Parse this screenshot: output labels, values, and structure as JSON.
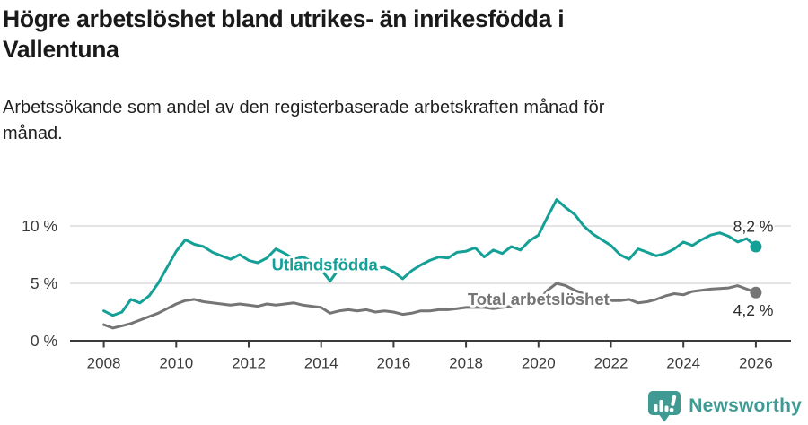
{
  "header": {
    "title": "Högre arbetslöshet bland utrikes- än inrikesfödda i Vallentuna",
    "title_lines": [
      "Högre arbetslöshet bland utrikes- än inrikesfödda i",
      "Vallentuna"
    ],
    "subtitle": "Arbetssökande som andel av den registerbaserade arbetskraften månad för månad.",
    "subtitle_lines": [
      "Arbetssökande som andel av den registerbaserade arbetskraften månad för",
      "månad."
    ]
  },
  "chart_data": {
    "type": "line",
    "title": "Högre arbetslöshet bland utrikes- än inrikesfödda i Vallentuna",
    "subtitle": "Arbetssökande som andel av den registerbaserade arbetskraften månad för månad.",
    "unit": "%",
    "grid": true,
    "x_start": 2008,
    "x_step": 0.25,
    "xlim": [
      2007.1,
      2027.0
    ],
    "ylim": [
      0,
      13.7
    ],
    "x_ticks": [
      2008,
      2010,
      2012,
      2014,
      2016,
      2018,
      2020,
      2022,
      2024,
      2026
    ],
    "y_ticks": [
      {
        "value": 0,
        "label": "0 %"
      },
      {
        "value": 5,
        "label": "5 %"
      },
      {
        "value": 10,
        "label": "10 %"
      }
    ],
    "series": [
      {
        "name": "Utlandsfödda",
        "color": "#14a096",
        "end_label": "8,2 %",
        "end_value": 8.2,
        "label_pos": {
          "x": 2014.1,
          "y": 6.6
        },
        "values": [
          2.6,
          2.2,
          2.5,
          3.6,
          3.3,
          3.9,
          5.0,
          6.4,
          7.8,
          8.8,
          8.4,
          8.2,
          7.7,
          7.4,
          7.1,
          7.5,
          7.0,
          6.8,
          7.2,
          8.0,
          7.6,
          7.1,
          7.3,
          6.9,
          6.2,
          5.2,
          6.3,
          6.6,
          6.1,
          6.4,
          6.3,
          6.4,
          6.0,
          5.4,
          6.1,
          6.6,
          7.0,
          7.3,
          7.2,
          7.7,
          7.8,
          8.1,
          7.3,
          7.9,
          7.6,
          8.2,
          7.9,
          8.7,
          9.2,
          10.8,
          12.3,
          11.6,
          11.0,
          10.0,
          9.3,
          8.8,
          8.3,
          7.5,
          7.1,
          8.0,
          7.7,
          7.4,
          7.6,
          8.0,
          8.6,
          8.3,
          8.8,
          9.2,
          9.4,
          9.1,
          8.6,
          8.9,
          8.2
        ]
      },
      {
        "name": "Total arbetslöshet",
        "color": "#757575",
        "end_label": "4,2 %",
        "end_value": 4.2,
        "label_pos": {
          "x": 2020.0,
          "y": 3.6
        },
        "values": [
          1.4,
          1.1,
          1.3,
          1.5,
          1.8,
          2.1,
          2.4,
          2.8,
          3.2,
          3.5,
          3.6,
          3.4,
          3.3,
          3.2,
          3.1,
          3.2,
          3.1,
          3.0,
          3.2,
          3.1,
          3.2,
          3.3,
          3.1,
          3.0,
          2.9,
          2.4,
          2.6,
          2.7,
          2.6,
          2.7,
          2.5,
          2.6,
          2.5,
          2.3,
          2.4,
          2.6,
          2.6,
          2.7,
          2.7,
          2.8,
          2.9,
          2.9,
          2.9,
          2.8,
          2.9,
          3.0,
          3.2,
          3.3,
          3.5,
          4.4,
          5.0,
          4.8,
          4.4,
          4.1,
          3.8,
          3.6,
          3.5,
          3.5,
          3.6,
          3.3,
          3.4,
          3.6,
          3.9,
          4.1,
          4.0,
          4.3,
          4.4,
          4.5,
          4.55,
          4.6,
          4.8,
          4.5,
          4.2
        ]
      }
    ]
  },
  "colors": {
    "accent_teal": "#14a096",
    "series_gray": "#757575",
    "axis": "#3a3a3c",
    "gridline": "#dcdcdd",
    "text_dark": "#1a1a1a",
    "brand_teal": "#3f9a93"
  },
  "footer": {
    "brand": "Newsworthy",
    "brand_color": "#3f9a93"
  }
}
